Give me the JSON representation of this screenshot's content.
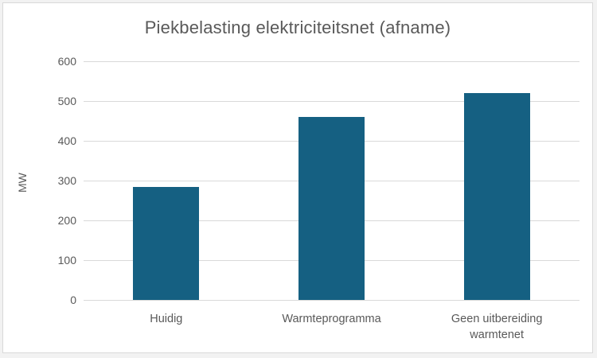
{
  "chart_data": {
    "type": "bar",
    "title": "Piekbelasting elektriciteitsnet (afname)",
    "ylabel": "MW",
    "xlabel": "",
    "categories": [
      "Huidig",
      "Warmteprogramma",
      "Geen uitbereiding warmtenet"
    ],
    "values": [
      285,
      460,
      520
    ],
    "ylim": [
      0,
      600
    ],
    "yticks": [
      0,
      100,
      200,
      300,
      400,
      500,
      600
    ],
    "grid": "horizontal",
    "legend": "none",
    "bar_color": "#156082",
    "gridline_color": "#d9d9d9",
    "text_color": "#595959",
    "frame_border_color": "#d9d9d9"
  }
}
